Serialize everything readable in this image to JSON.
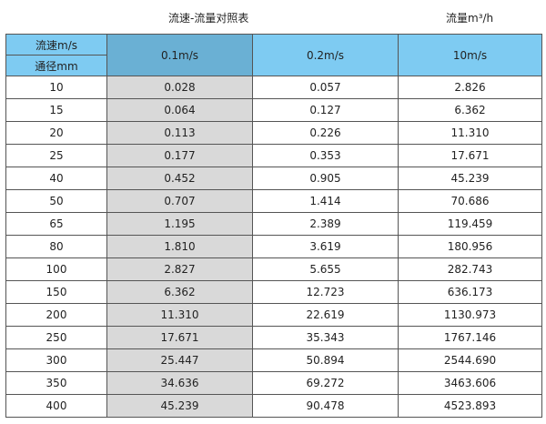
{
  "title": "流速-流量对照表",
  "unit": "流量m³/h",
  "header": {
    "velocity_label": "流速m/s",
    "diameter_label": "通径mm",
    "columns": [
      "0.1m/s",
      "0.2m/s",
      "10m/s"
    ]
  },
  "rows": [
    [
      "10",
      "0.028",
      "0.057",
      "2.826"
    ],
    [
      "15",
      "0.064",
      "0.127",
      "6.362"
    ],
    [
      "20",
      "0.113",
      "0.226",
      "11.310"
    ],
    [
      "25",
      "0.177",
      "0.353",
      "17.671"
    ],
    [
      "40",
      "0.452",
      "0.905",
      "45.239"
    ],
    [
      "50",
      "0.707",
      "1.414",
      "70.686"
    ],
    [
      "65",
      "1.195",
      "2.389",
      "119.459"
    ],
    [
      "80",
      "1.810",
      "3.619",
      "180.956"
    ],
    [
      "100",
      "2.827",
      "5.655",
      "282.743"
    ],
    [
      "150",
      "6.362",
      "12.723",
      "636.173"
    ],
    [
      "200",
      "11.310",
      "22.619",
      "1130.973"
    ],
    [
      "250",
      "17.671",
      "35.343",
      "1767.146"
    ],
    [
      "300",
      "25.447",
      "50.894",
      "2544.690"
    ],
    [
      "350",
      "34.636",
      "69.272",
      "3463.606"
    ],
    [
      "400",
      "45.239",
      "90.478",
      "4523.893"
    ]
  ]
}
